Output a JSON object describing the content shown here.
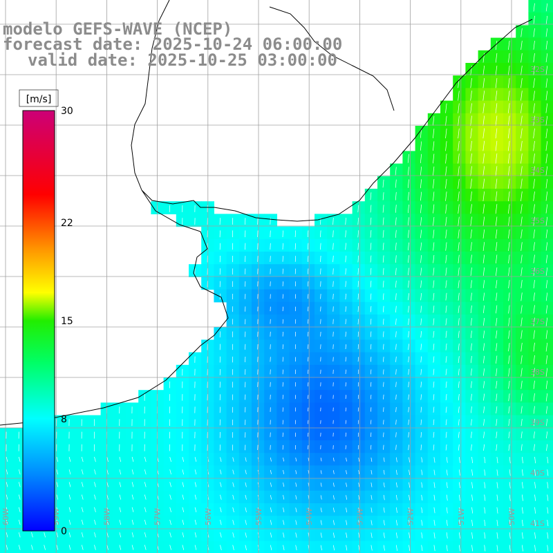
{
  "title": {
    "line1": "modelo GEFS-WAVE (NCEP)",
    "line2": "forecast date: 2025-10-24 06:00:00",
    "line3": "valid date: 2025-10-25 03:00:00"
  },
  "colorbar": {
    "unit": "[m/s]",
    "ticks": [
      {
        "label": "30",
        "value": 30
      },
      {
        "label": "22",
        "value": 22
      },
      {
        "label": "15",
        "value": 15
      },
      {
        "label": "8",
        "value": 8
      },
      {
        "label": "0",
        "value": 0
      }
    ],
    "stops": [
      {
        "v": 0,
        "c": "#0000ff"
      },
      {
        "v": 4,
        "c": "#0088ff"
      },
      {
        "v": 8,
        "c": "#00ffff"
      },
      {
        "v": 12,
        "c": "#00ff66"
      },
      {
        "v": 15,
        "c": "#22ee00"
      },
      {
        "v": 17,
        "c": "#ffff00"
      },
      {
        "v": 20,
        "c": "#ff9900"
      },
      {
        "v": 24,
        "c": "#ff0000"
      },
      {
        "v": 30,
        "c": "#cc0077"
      }
    ]
  },
  "lat_labels": [
    "32S",
    "33S",
    "34S",
    "35S",
    "36S",
    "37S",
    "38S",
    "39S",
    "40S",
    "41S"
  ],
  "lon_labels": [
    "60W",
    "59W",
    "58W",
    "57W",
    "56W",
    "55W",
    "54W",
    "53W",
    "52W",
    "51W",
    "50W"
  ],
  "colors": {
    "land": "#ffffff",
    "grid": "#a0a0a0",
    "coast": "#000000",
    "arrow": "#ffffff"
  }
}
